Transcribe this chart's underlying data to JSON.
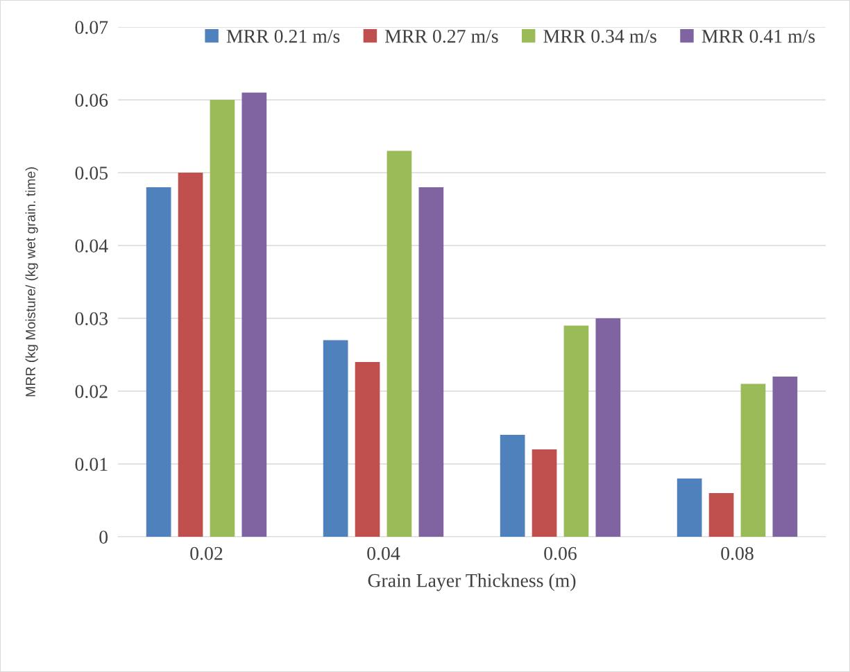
{
  "chart_data": {
    "type": "bar",
    "xlabel": "Grain Layer Thickness (m)",
    "ylabel": "MRR (kg Moisture/ (kg wet grain. time)",
    "categories": [
      "0.02",
      "0.04",
      "0.06",
      "0.08"
    ],
    "series": [
      {
        "name": "MRR 0.21 m/s",
        "color": "#4f81bd",
        "values": [
          0.048,
          0.027,
          0.014,
          0.008
        ]
      },
      {
        "name": "MRR 0.27 m/s",
        "color": "#c0504d",
        "values": [
          0.05,
          0.024,
          0.012,
          0.006
        ]
      },
      {
        "name": "MRR 0.34 m/s",
        "color": "#9bbb59",
        "values": [
          0.06,
          0.053,
          0.029,
          0.021
        ]
      },
      {
        "name": "MRR 0.41 m/s",
        "color": "#8064a2",
        "values": [
          0.061,
          0.048,
          0.03,
          0.022
        ]
      }
    ],
    "ylim": [
      0,
      0.07
    ],
    "yticks": [
      {
        "value": 0,
        "label": "0"
      },
      0.01,
      0.02,
      0.03,
      0.04,
      0.05,
      0.06,
      0.07
    ],
    "grid": "y",
    "legend": "top right"
  }
}
